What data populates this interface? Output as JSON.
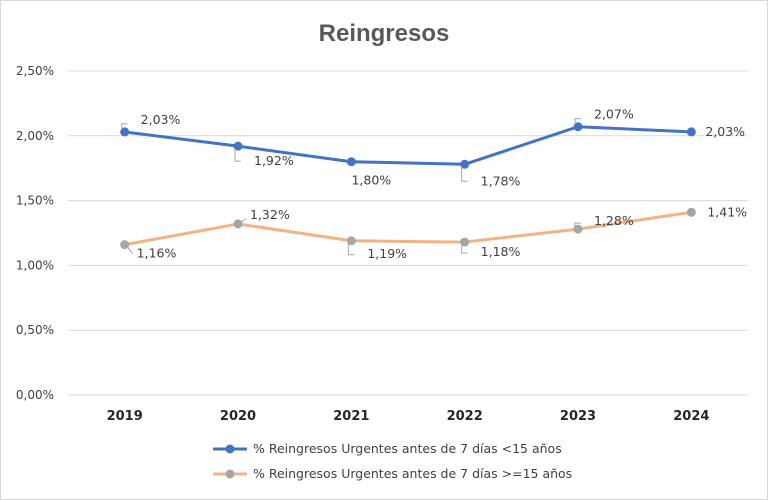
{
  "chart_data": {
    "type": "line",
    "title": "Reingresos",
    "categories": [
      "2019",
      "2020",
      "2021",
      "2022",
      "2023",
      "2024"
    ],
    "ylim": [
      0,
      0.025
    ],
    "y_ticks": [
      0.0,
      0.005,
      0.01,
      0.015,
      0.02,
      0.025
    ],
    "y_tick_labels": [
      "0,00%",
      "0,50%",
      "1,00%",
      "1,50%",
      "2,00%",
      "2,50%"
    ],
    "grid": true,
    "legend_position": "bottom",
    "series": [
      {
        "name": "% Reingresos Urgentes antes de 7 días <15 años",
        "values": [
          0.0203,
          0.0192,
          0.018,
          0.0178,
          0.0207,
          0.0203
        ],
        "labels": [
          "2,03%",
          "1,92%",
          "1,80%",
          "1,78%",
          "2,07%",
          "2,03%"
        ],
        "line_color": "#4472c4",
        "marker_color": "#4472c4"
      },
      {
        "name": "% Reingresos Urgentes antes de 7 días >=15 años",
        "values": [
          0.0116,
          0.0132,
          0.0119,
          0.0118,
          0.0128,
          0.0141
        ],
        "labels": [
          "1,16%",
          "1,32%",
          "1,19%",
          "1,18%",
          "1,28%",
          "1,41%"
        ],
        "line_color": "#f4b183",
        "marker_color": "#a5a5a5"
      }
    ]
  }
}
